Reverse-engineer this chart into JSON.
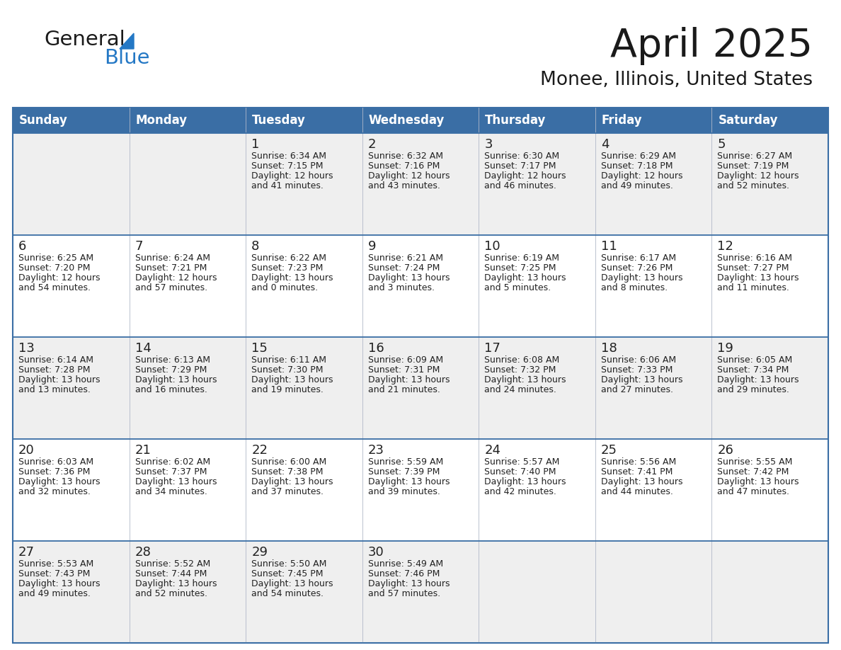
{
  "title": "April 2025",
  "subtitle": "Monee, Illinois, United States",
  "days_of_week": [
    "Sunday",
    "Monday",
    "Tuesday",
    "Wednesday",
    "Thursday",
    "Friday",
    "Saturday"
  ],
  "header_bg": "#3a6ea5",
  "header_text": "#ffffff",
  "cell_bg_odd": "#efefef",
  "cell_bg_even": "#ffffff",
  "cell_border": "#3a6ea5",
  "text_color": "#222222",
  "calendar_data": [
    [
      null,
      null,
      {
        "day": 1,
        "sunrise": "6:34 AM",
        "sunset": "7:15 PM",
        "daylight_h": "12 hours",
        "daylight_m": "41 minutes."
      },
      {
        "day": 2,
        "sunrise": "6:32 AM",
        "sunset": "7:16 PM",
        "daylight_h": "12 hours",
        "daylight_m": "43 minutes."
      },
      {
        "day": 3,
        "sunrise": "6:30 AM",
        "sunset": "7:17 PM",
        "daylight_h": "12 hours",
        "daylight_m": "46 minutes."
      },
      {
        "day": 4,
        "sunrise": "6:29 AM",
        "sunset": "7:18 PM",
        "daylight_h": "12 hours",
        "daylight_m": "49 minutes."
      },
      {
        "day": 5,
        "sunrise": "6:27 AM",
        "sunset": "7:19 PM",
        "daylight_h": "12 hours",
        "daylight_m": "52 minutes."
      }
    ],
    [
      {
        "day": 6,
        "sunrise": "6:25 AM",
        "sunset": "7:20 PM",
        "daylight_h": "12 hours",
        "daylight_m": "54 minutes."
      },
      {
        "day": 7,
        "sunrise": "6:24 AM",
        "sunset": "7:21 PM",
        "daylight_h": "12 hours",
        "daylight_m": "57 minutes."
      },
      {
        "day": 8,
        "sunrise": "6:22 AM",
        "sunset": "7:23 PM",
        "daylight_h": "13 hours",
        "daylight_m": "0 minutes."
      },
      {
        "day": 9,
        "sunrise": "6:21 AM",
        "sunset": "7:24 PM",
        "daylight_h": "13 hours",
        "daylight_m": "3 minutes."
      },
      {
        "day": 10,
        "sunrise": "6:19 AM",
        "sunset": "7:25 PM",
        "daylight_h": "13 hours",
        "daylight_m": "5 minutes."
      },
      {
        "day": 11,
        "sunrise": "6:17 AM",
        "sunset": "7:26 PM",
        "daylight_h": "13 hours",
        "daylight_m": "8 minutes."
      },
      {
        "day": 12,
        "sunrise": "6:16 AM",
        "sunset": "7:27 PM",
        "daylight_h": "13 hours",
        "daylight_m": "11 minutes."
      }
    ],
    [
      {
        "day": 13,
        "sunrise": "6:14 AM",
        "sunset": "7:28 PM",
        "daylight_h": "13 hours",
        "daylight_m": "13 minutes."
      },
      {
        "day": 14,
        "sunrise": "6:13 AM",
        "sunset": "7:29 PM",
        "daylight_h": "13 hours",
        "daylight_m": "16 minutes."
      },
      {
        "day": 15,
        "sunrise": "6:11 AM",
        "sunset": "7:30 PM",
        "daylight_h": "13 hours",
        "daylight_m": "19 minutes."
      },
      {
        "day": 16,
        "sunrise": "6:09 AM",
        "sunset": "7:31 PM",
        "daylight_h": "13 hours",
        "daylight_m": "21 minutes."
      },
      {
        "day": 17,
        "sunrise": "6:08 AM",
        "sunset": "7:32 PM",
        "daylight_h": "13 hours",
        "daylight_m": "24 minutes."
      },
      {
        "day": 18,
        "sunrise": "6:06 AM",
        "sunset": "7:33 PM",
        "daylight_h": "13 hours",
        "daylight_m": "27 minutes."
      },
      {
        "day": 19,
        "sunrise": "6:05 AM",
        "sunset": "7:34 PM",
        "daylight_h": "13 hours",
        "daylight_m": "29 minutes."
      }
    ],
    [
      {
        "day": 20,
        "sunrise": "6:03 AM",
        "sunset": "7:36 PM",
        "daylight_h": "13 hours",
        "daylight_m": "32 minutes."
      },
      {
        "day": 21,
        "sunrise": "6:02 AM",
        "sunset": "7:37 PM",
        "daylight_h": "13 hours",
        "daylight_m": "34 minutes."
      },
      {
        "day": 22,
        "sunrise": "6:00 AM",
        "sunset": "7:38 PM",
        "daylight_h": "13 hours",
        "daylight_m": "37 minutes."
      },
      {
        "day": 23,
        "sunrise": "5:59 AM",
        "sunset": "7:39 PM",
        "daylight_h": "13 hours",
        "daylight_m": "39 minutes."
      },
      {
        "day": 24,
        "sunrise": "5:57 AM",
        "sunset": "7:40 PM",
        "daylight_h": "13 hours",
        "daylight_m": "42 minutes."
      },
      {
        "day": 25,
        "sunrise": "5:56 AM",
        "sunset": "7:41 PM",
        "daylight_h": "13 hours",
        "daylight_m": "44 minutes."
      },
      {
        "day": 26,
        "sunrise": "5:55 AM",
        "sunset": "7:42 PM",
        "daylight_h": "13 hours",
        "daylight_m": "47 minutes."
      }
    ],
    [
      {
        "day": 27,
        "sunrise": "5:53 AM",
        "sunset": "7:43 PM",
        "daylight_h": "13 hours",
        "daylight_m": "49 minutes."
      },
      {
        "day": 28,
        "sunrise": "5:52 AM",
        "sunset": "7:44 PM",
        "daylight_h": "13 hours",
        "daylight_m": "52 minutes."
      },
      {
        "day": 29,
        "sunrise": "5:50 AM",
        "sunset": "7:45 PM",
        "daylight_h": "13 hours",
        "daylight_m": "54 minutes."
      },
      {
        "day": 30,
        "sunrise": "5:49 AM",
        "sunset": "7:46 PM",
        "daylight_h": "13 hours",
        "daylight_m": "57 minutes."
      },
      null,
      null,
      null
    ]
  ],
  "logo_text_general": "General",
  "logo_text_blue": "Blue",
  "logo_color_general": "#1a1a1a",
  "logo_color_blue": "#2478c5",
  "fig_width": 11.88,
  "fig_height": 9.18,
  "fig_dpi": 100
}
